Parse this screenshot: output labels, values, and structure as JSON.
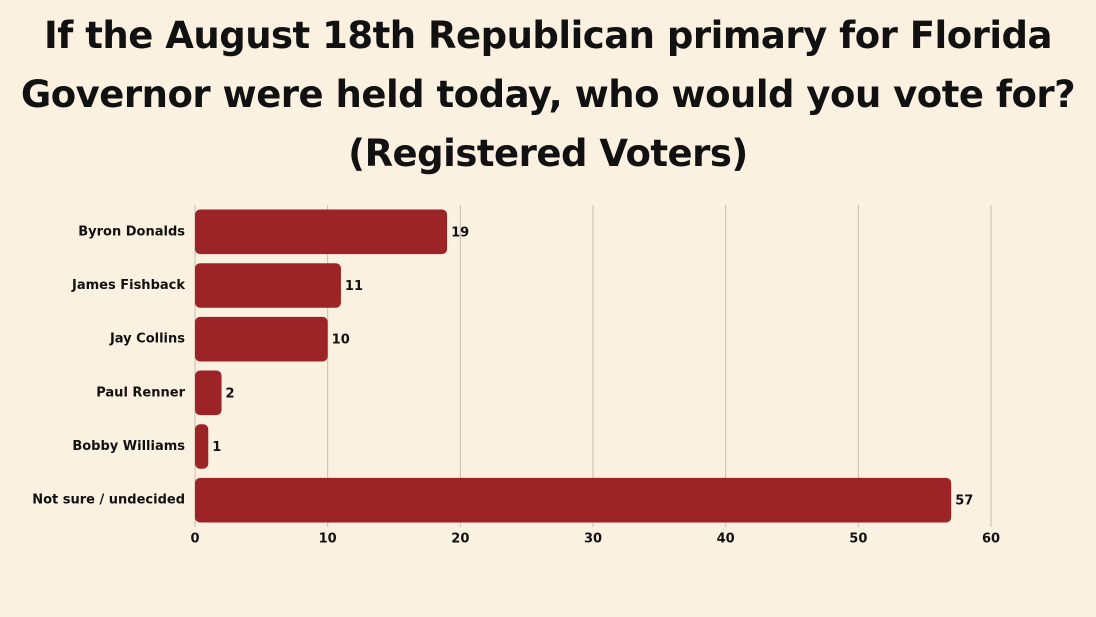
{
  "chart_data": {
    "type": "bar",
    "orientation": "horizontal",
    "title": "If the August 18th Republican primary for Florida Governor were held today, who would you vote for? (Registered Voters)",
    "categories": [
      "Byron Donalds",
      "James Fishback",
      "Jay Collins",
      "Paul Renner",
      "Bobby Williams",
      "Not sure / undecided"
    ],
    "values": [
      19,
      11,
      10,
      2,
      1,
      57
    ],
    "color": "#9c2326",
    "xlim": [
      0,
      60
    ],
    "xticks": [
      0,
      10,
      20,
      30,
      40,
      50,
      60
    ],
    "grid": true
  }
}
